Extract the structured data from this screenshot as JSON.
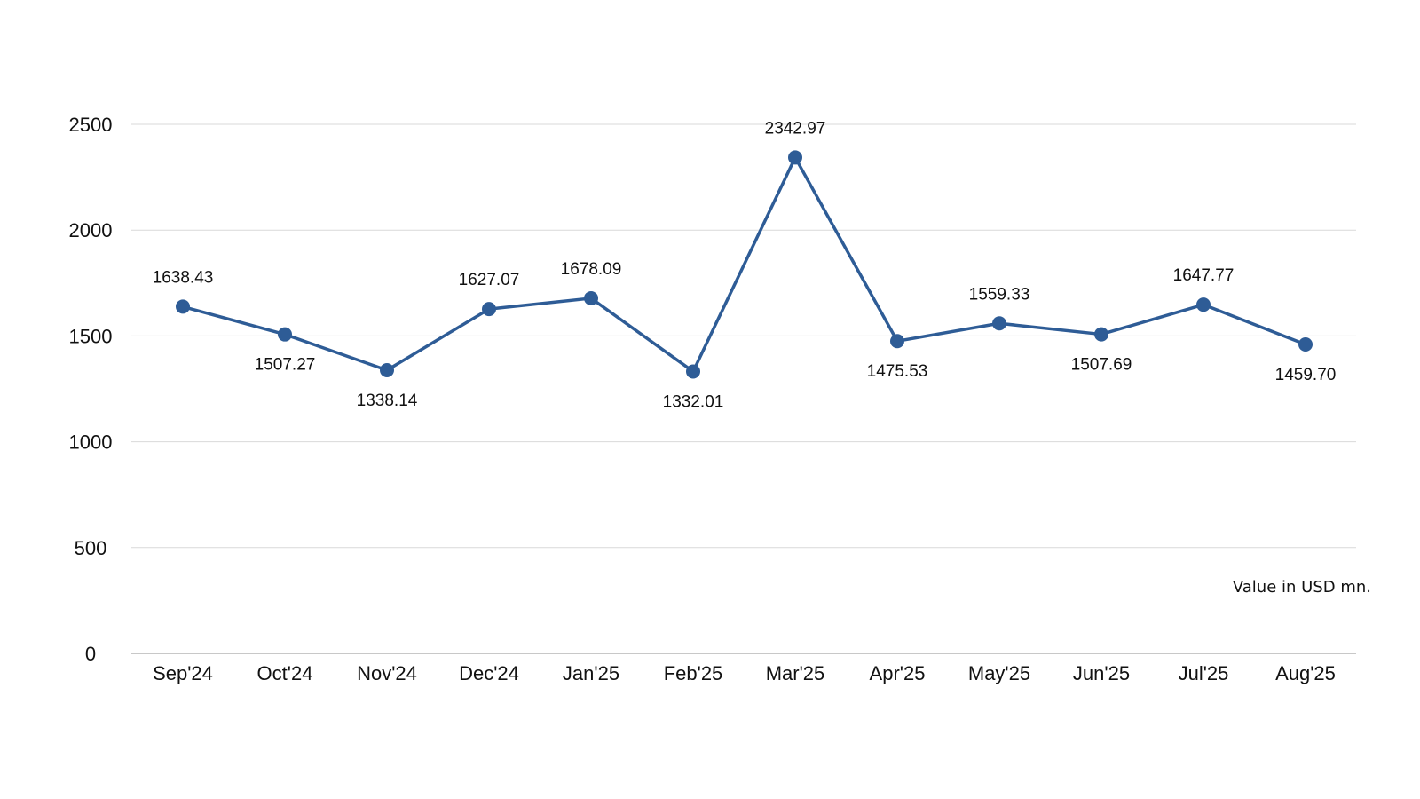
{
  "chart_data": {
    "type": "line",
    "categories": [
      "Sep'24",
      "Oct'24",
      "Nov'24",
      "Dec'24",
      "Jan'25",
      "Feb'25",
      "Mar'25",
      "Apr'25",
      "May'25",
      "Jun'25",
      "Jul'25",
      "Aug'25"
    ],
    "series": [
      {
        "values": [
          1638.43,
          1507.27,
          1338.14,
          1627.07,
          1678.09,
          1332.01,
          2342.97,
          1475.53,
          1559.33,
          1507.69,
          1647.77,
          1459.7
        ],
        "labels": [
          "1638.43",
          "1507.27",
          "1338.14",
          "1627.07",
          "1678.09",
          "1332.01",
          "2342.97",
          "1475.53",
          "1559.33",
          "1507.69",
          "1647.77",
          "1459.70"
        ],
        "label_positions": [
          "above",
          "below",
          "below",
          "above",
          "above",
          "below",
          "above",
          "below",
          "above",
          "below",
          "above",
          "below"
        ],
        "color": "#2e5c96"
      }
    ],
    "ylim": [
      0,
      2500
    ],
    "yticks": [
      0,
      500,
      1000,
      1500,
      2000,
      2500
    ],
    "grid": true,
    "unit_note": "Value in USD mn.",
    "title": "",
    "xlabel": "",
    "ylabel": ""
  }
}
